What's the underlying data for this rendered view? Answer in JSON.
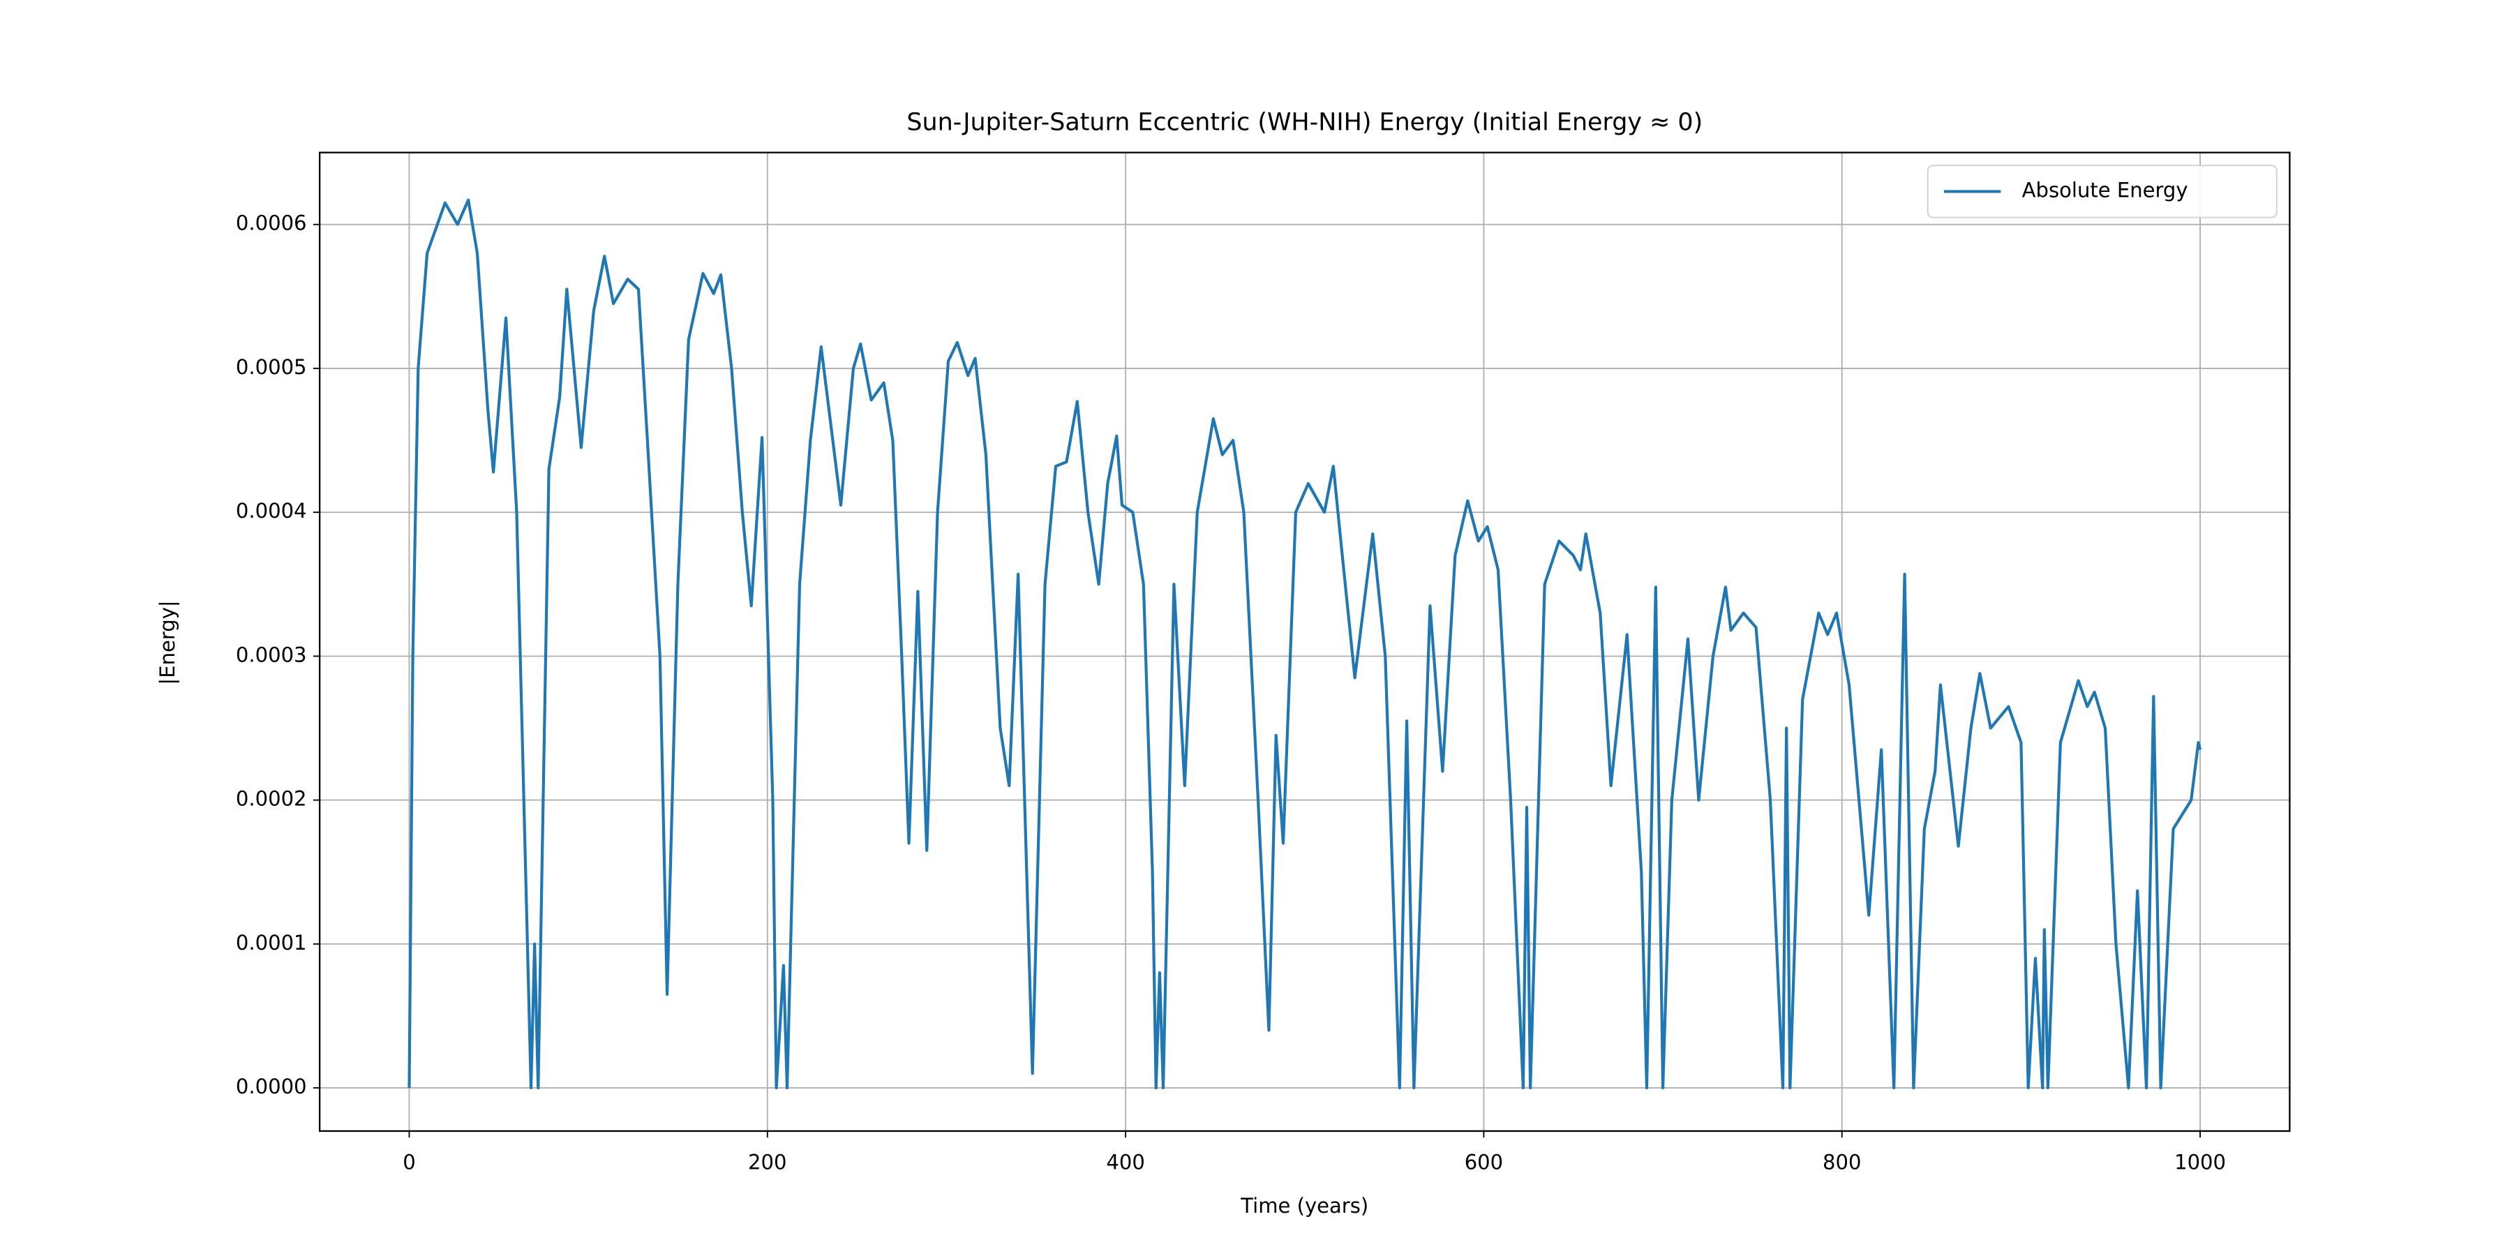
{
  "chart_data": {
    "type": "line",
    "title": "Sun-Jupiter-Saturn Eccentric (WH-NIH) Energy (Initial Energy ≈ 0)",
    "x_label": "Time (years)",
    "y_label": "|Energy|",
    "xlim": [
      -50,
      1050
    ],
    "xticks": [
      0,
      200,
      400,
      600,
      800,
      1000
    ],
    "ylim": [
      -3e-05,
      0.00065
    ],
    "yticks": [
      {
        "value": 0,
        "label": "0.0000"
      },
      {
        "value": 0.0001,
        "label": "0.0001"
      },
      {
        "value": 0.0002,
        "label": "0.0002"
      },
      {
        "value": 0.0003,
        "label": "0.0003"
      },
      {
        "value": 0.0004,
        "label": "0.0004"
      },
      {
        "value": 0.0005,
        "label": "0.0005"
      },
      {
        "value": 0.0006,
        "label": "0.0006"
      }
    ],
    "grid": true,
    "legend": "upper right",
    "x": [
      0,
      2,
      5,
      10,
      20,
      27,
      33,
      38,
      44,
      47,
      54,
      60,
      68,
      70,
      72,
      78,
      84,
      88,
      96,
      103,
      109,
      114,
      122,
      128,
      133,
      140,
      144,
      150,
      156,
      164,
      170,
      174,
      180,
      186,
      191,
      197,
      203,
      205,
      209,
      211,
      218,
      224,
      230,
      241,
      248,
      252,
      258,
      265,
      270,
      275,
      279,
      284,
      289,
      295,
      301,
      306,
      312,
      316,
      322,
      330,
      335,
      340,
      348,
      355,
      361,
      367,
      373,
      379,
      385,
      390,
      395,
      398,
      404,
      410,
      415,
      417,
      419,
      421,
      427,
      433,
      440,
      449,
      454,
      460,
      466,
      474,
      480,
      484,
      488,
      495,
      502,
      511,
      516,
      521,
      528,
      538,
      545,
      553,
      557,
      561,
      570,
      577,
      584,
      591,
      597,
      602,
      608,
      615,
      622,
      624,
      626,
      634,
      642,
      650,
      654,
      657,
      665,
      671,
      680,
      688,
      691,
      696,
      700,
      705,
      714,
      720,
      728,
      735,
      738,
      745,
      752,
      760,
      767,
      769,
      771,
      778,
      787,
      792,
      797,
      804,
      815,
      822,
      829,
      835,
      840,
      846,
      852,
      855,
      865,
      872,
      877,
      883,
      893,
      900,
      904,
      908,
      912,
      913,
      915,
      922,
      932,
      937,
      941,
      947,
      953,
      960,
      965,
      970,
      974,
      978,
      985,
      990,
      995,
      999,
      1000
    ],
    "series": [
      {
        "name": "Absolute Energy",
        "color": "#1f77b4",
        "values": [
          0,
          0.0003,
          0.0005,
          0.00058,
          0.000615,
          0.0006,
          0.000617,
          0.00058,
          0.00047,
          0.000428,
          0.000535,
          0.0004,
          0,
          0.0001,
          0,
          0.00043,
          0.00048,
          0.000555,
          0.000445,
          0.00054,
          0.000578,
          0.000545,
          0.000562,
          0.000555,
          0.00045,
          0.0003,
          6.5e-05,
          0.00035,
          0.00052,
          0.000566,
          0.000552,
          0.000565,
          0.0005,
          0.0004,
          0.000335,
          0.000452,
          0.0002,
          0,
          8.5e-05,
          0,
          0.00035,
          0.00045,
          0.000515,
          0.000405,
          0.0005,
          0.000517,
          0.000478,
          0.00049,
          0.00045,
          0.0003,
          0.00017,
          0.000345,
          0.000165,
          0.0004,
          0.000505,
          0.000518,
          0.000495,
          0.000507,
          0.00044,
          0.00025,
          0.00021,
          0.000357,
          1e-05,
          0.00035,
          0.000432,
          0.000435,
          0.000477,
          0.0004,
          0.00035,
          0.00042,
          0.000453,
          0.000405,
          0.0004,
          0.00035,
          0.00015,
          0,
          8e-05,
          0,
          0.00035,
          0.00021,
          0.0004,
          0.000465,
          0.00044,
          0.00045,
          0.0004,
          0.0002,
          4e-05,
          0.000245,
          0.00017,
          0.0004,
          0.00042,
          0.0004,
          0.000432,
          0.00037,
          0.000285,
          0.000385,
          0.0003,
          0,
          0.000255,
          0,
          0.000335,
          0.00022,
          0.00037,
          0.000408,
          0.00038,
          0.00039,
          0.00036,
          0.0002,
          0,
          0.000195,
          0,
          0.00035,
          0.00038,
          0.00037,
          0.00036,
          0.000385,
          0.00033,
          0.00021,
          0.000315,
          0.00015,
          0,
          0.000348,
          0,
          0.0002,
          0.000312,
          0.0002,
          0.0003,
          0.000348,
          0.000318,
          0.00033,
          0.00032,
          0.0002,
          0,
          0.00025,
          0,
          0.00027,
          0.00033,
          0.000315,
          0.00033,
          0.00028,
          0.00012,
          0.000235,
          0,
          0.000357,
          0,
          0.00018,
          0.00022,
          0.00028,
          0.000168,
          0.00025,
          0.000288,
          0.00025,
          0.000265,
          0.00024,
          0,
          9e-05,
          0,
          0.00011,
          0,
          0.00024,
          0.000283,
          0.000265,
          0.000275,
          0.00025,
          0.0001,
          0,
          0.000137,
          0,
          0.000272,
          0,
          0.00018,
          0.00019,
          0.0002,
          0.00024,
          0.000235
        ]
      }
    ]
  }
}
